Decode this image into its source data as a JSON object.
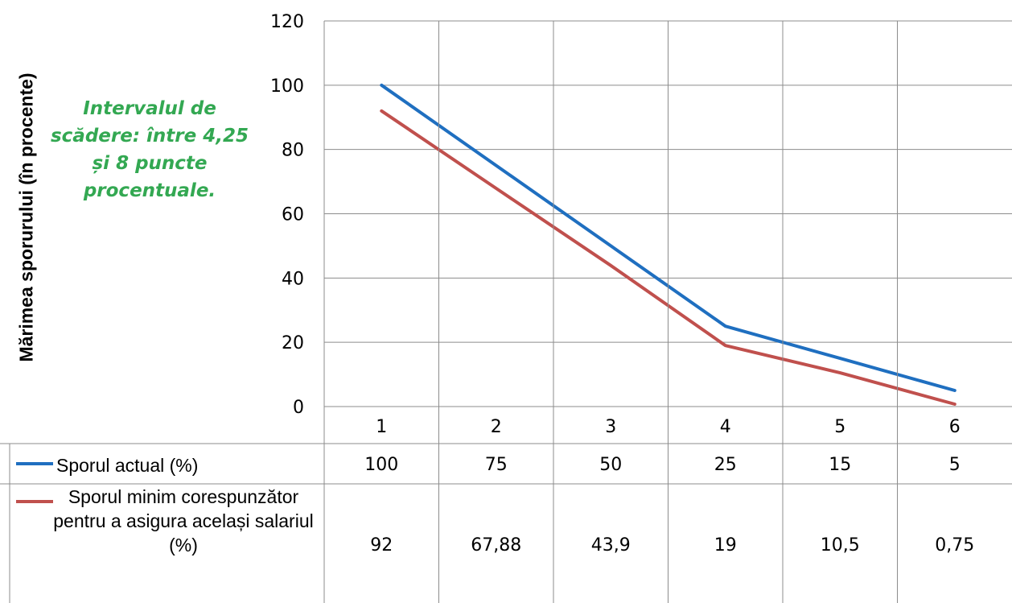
{
  "chart_data": {
    "type": "line",
    "categories": [
      "1",
      "2",
      "3",
      "4",
      "5",
      "6"
    ],
    "ylabel": "Mărimea sporurului (în procente)",
    "ylim": [
      0,
      120
    ],
    "yticks": [
      "0",
      "20",
      "40",
      "60",
      "80",
      "100",
      "120"
    ],
    "grid": true,
    "legend": "table-below",
    "series": [
      {
        "name": "Sporul actual (%)",
        "color": "#1f6fc0",
        "values": [
          100,
          75,
          50,
          25,
          15,
          5
        ],
        "value_labels": [
          "100",
          "75",
          "50",
          "25",
          "15",
          "5"
        ]
      },
      {
        "name": "Sporul minim corespunzător pentru a asigura același salariul (%)",
        "color": "#c0504d",
        "values": [
          92,
          67.88,
          43.9,
          19,
          10.5,
          0.75
        ],
        "value_labels": [
          "92",
          "67,88",
          "43,9",
          "19",
          "10,5",
          "0,75"
        ]
      }
    ],
    "annotation": "Intervalul de scădere: între 4,25 și 8 puncte procentuale."
  }
}
